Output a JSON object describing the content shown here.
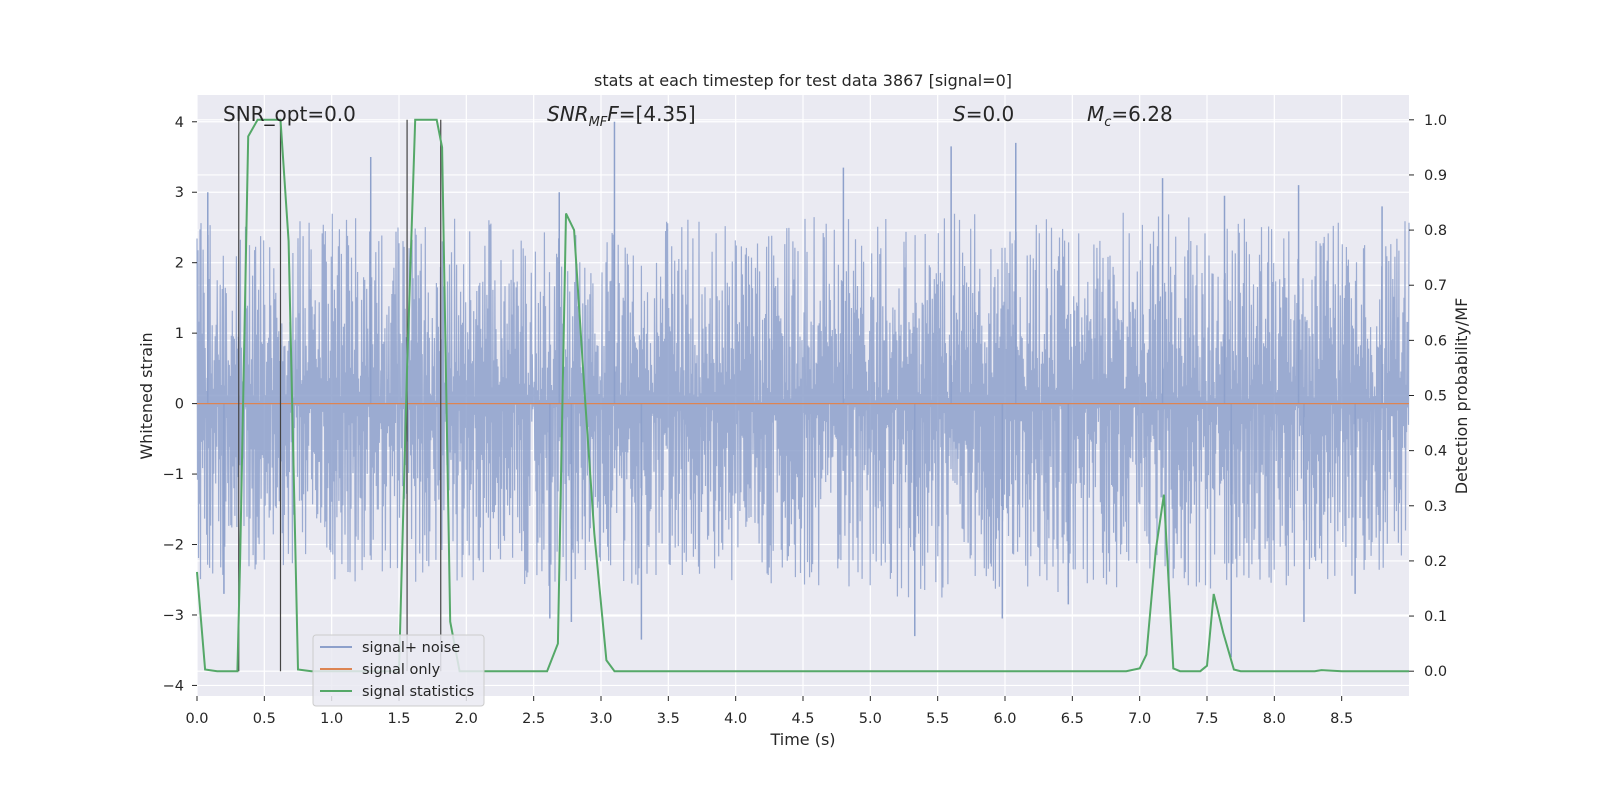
{
  "chart_data": {
    "type": "line",
    "title": "stats at each timestep for test data 3867 [signal=0]",
    "xlabel": "Time (s)",
    "ylabel_left": "Whitened strain",
    "ylabel_right": "Detection probability/MF",
    "xlim": [
      0.0,
      9.0
    ],
    "ylim_left": [
      -4.15,
      4.38
    ],
    "ylim_right": [
      -0.045,
      1.045
    ],
    "x_ticks": [
      "0.0",
      "0.5",
      "1.0",
      "1.5",
      "2.0",
      "2.5",
      "3.0",
      "3.5",
      "4.0",
      "4.5",
      "5.0",
      "5.5",
      "6.0",
      "6.5",
      "7.0",
      "7.5",
      "8.0",
      "8.5"
    ],
    "y_ticks_left": [
      "4",
      "3",
      "2",
      "1",
      "0",
      "−1",
      "−2",
      "−3",
      "−4"
    ],
    "y_ticks_right": [
      "1.0",
      "0.9",
      "0.8",
      "0.7",
      "0.6",
      "0.5",
      "0.4",
      "0.3",
      "0.2",
      "0.1",
      "0.0"
    ],
    "grid": true,
    "legend_position": "lower-left",
    "annotations": {
      "snr_opt": "SNR_opt=0.0",
      "snr_mf_name": "SNR",
      "snr_mf_sub": "MF",
      "snr_mf_value": "=[4.35]",
      "s_name": "S",
      "s_value": "=0.0",
      "mc_name": "M",
      "mc_sub": "c",
      "mc_value": "=6.28"
    },
    "vertical_markers": [
      0.31,
      0.62,
      1.56,
      1.81
    ],
    "series": [
      {
        "name": "signal+ noise",
        "axis": "left",
        "color": "#8da0cb",
        "envelope": {
          "x": [
            0.0,
            0.5,
            1.0,
            1.5,
            2.0,
            2.5,
            3.0,
            3.5,
            4.0,
            4.5,
            5.0,
            5.5,
            6.0,
            6.5,
            7.0,
            7.5,
            8.0,
            8.5,
            9.0
          ],
          "core": [
            1.5,
            1.5,
            1.5,
            1.5,
            1.5,
            1.5,
            1.5,
            1.5,
            1.5,
            1.5,
            1.5,
            1.5,
            1.5,
            1.5,
            1.5,
            1.5,
            1.5,
            1.5,
            1.5
          ],
          "upper": [
            2.6,
            2.5,
            2.7,
            2.6,
            2.7,
            2.5,
            2.6,
            2.8,
            2.6,
            2.7,
            2.6,
            2.7,
            2.7,
            2.6,
            2.8,
            2.6,
            2.7,
            2.6,
            2.7
          ],
          "lower": [
            -2.5,
            -2.4,
            -2.5,
            -2.6,
            -2.5,
            -2.6,
            -2.7,
            -2.6,
            -2.5,
            -2.6,
            -2.7,
            -2.8,
            -2.6,
            -2.7,
            -2.6,
            -2.7,
            -2.6,
            -2.5,
            -2.4
          ]
        },
        "spikes_up": [
          [
            0.08,
            3.0
          ],
          [
            1.29,
            3.5
          ],
          [
            2.69,
            3.0
          ],
          [
            3.1,
            4.0
          ],
          [
            4.8,
            3.35
          ],
          [
            5.6,
            3.65
          ],
          [
            6.08,
            3.7
          ],
          [
            7.17,
            3.2
          ],
          [
            7.63,
            2.95
          ],
          [
            8.18,
            3.1
          ],
          [
            8.8,
            2.8
          ]
        ],
        "spikes_down": [
          [
            0.2,
            -2.7
          ],
          [
            2.62,
            -3.05
          ],
          [
            2.78,
            -3.1
          ],
          [
            3.3,
            -3.35
          ],
          [
            5.33,
            -3.3
          ],
          [
            5.98,
            -3.05
          ],
          [
            6.47,
            -2.85
          ],
          [
            7.68,
            -3.6
          ],
          [
            8.22,
            -3.1
          ],
          [
            8.6,
            -2.7
          ]
        ]
      },
      {
        "name": "signal only",
        "axis": "left",
        "color": "#dd8452",
        "x": [
          0.0,
          9.0
        ],
        "y": [
          0.0,
          0.0
        ]
      },
      {
        "name": "signal statistics",
        "axis": "right",
        "color": "#55a868",
        "x": [
          0.0,
          0.06,
          0.15,
          0.3,
          0.32,
          0.38,
          0.45,
          0.5,
          0.55,
          0.62,
          0.68,
          0.75,
          0.85,
          1.5,
          1.56,
          1.62,
          1.7,
          1.78,
          1.82,
          1.88,
          1.95,
          2.6,
          2.68,
          2.74,
          2.8,
          2.88,
          2.95,
          3.04,
          3.1,
          3.2,
          6.9,
          7.0,
          7.05,
          7.12,
          7.18,
          7.25,
          7.3,
          7.35,
          7.45,
          7.5,
          7.55,
          7.62,
          7.7,
          7.75,
          8.3,
          8.35,
          8.5,
          9.0
        ],
        "y": [
          0.18,
          0.003,
          0.0,
          0.0,
          0.2,
          0.97,
          1.0,
          1.0,
          1.0,
          1.0,
          0.78,
          0.003,
          0.0,
          0.0,
          0.55,
          1.0,
          1.0,
          1.0,
          0.95,
          0.09,
          0.0,
          0.0,
          0.05,
          0.83,
          0.8,
          0.5,
          0.25,
          0.02,
          0.0,
          0.0,
          0.0,
          0.005,
          0.03,
          0.22,
          0.32,
          0.005,
          0.0,
          0.0,
          0.0,
          0.01,
          0.14,
          0.07,
          0.003,
          0.0,
          0.0,
          0.002,
          0.0,
          0.0
        ]
      }
    ]
  }
}
